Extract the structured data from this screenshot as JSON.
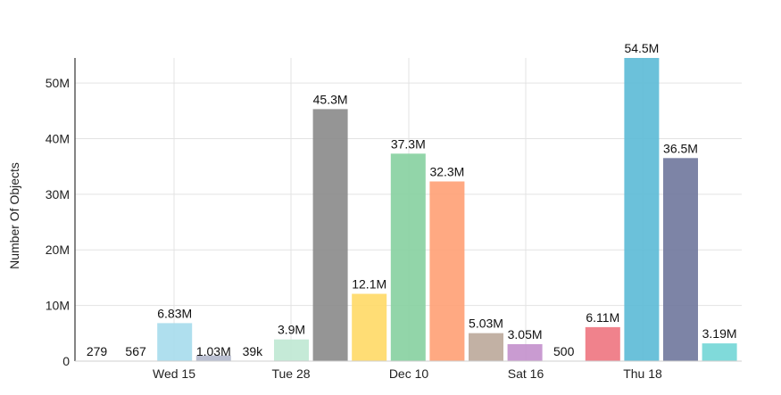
{
  "chart_data": {
    "type": "bar",
    "ylabel": "Number Of Objects",
    "ylim": [
      0,
      54500000
    ],
    "yticks": [
      0,
      10000000,
      20000000,
      30000000,
      40000000,
      50000000
    ],
    "ytick_labels": [
      "0",
      "10M",
      "20M",
      "30M",
      "40M",
      "50M"
    ],
    "xtick_labels": [
      "Wed 15",
      "Tue 28",
      "Dec 10",
      "Sat 16",
      "Thu 18"
    ],
    "grid": true,
    "bars": [
      {
        "value": 279,
        "label": "279",
        "color": "#87ceeb"
      },
      {
        "value": 567,
        "label": "567",
        "color": "#87ceeb"
      },
      {
        "value": 6830000,
        "label": "6.83M",
        "color": "#a6dcec"
      },
      {
        "value": 1030000,
        "label": "1.03M",
        "color": "#b3b8cc"
      },
      {
        "value": 39000,
        "label": "39k",
        "color": "#b9e6cf"
      },
      {
        "value": 3900000,
        "label": "3.9M",
        "color": "#bfe8d3"
      },
      {
        "value": 45300000,
        "label": "45.3M",
        "color": "#8a8a8a"
      },
      {
        "value": 12100000,
        "label": "12.1M",
        "color": "#ffd966"
      },
      {
        "value": 37300000,
        "label": "37.3M",
        "color": "#86d0a0"
      },
      {
        "value": 32300000,
        "label": "32.3M",
        "color": "#ffa074"
      },
      {
        "value": 5030000,
        "label": "5.03M",
        "color": "#bba99a"
      },
      {
        "value": 3050000,
        "label": "3.05M",
        "color": "#c390cc"
      },
      {
        "value": 500,
        "label": "500",
        "color": "#c390cc"
      },
      {
        "value": 6110000,
        "label": "6.11M",
        "color": "#ee7480"
      },
      {
        "value": 54500000,
        "label": "54.5M",
        "color": "#5bbad6"
      },
      {
        "value": 36500000,
        "label": "36.5M",
        "color": "#6f779c"
      },
      {
        "value": 3190000,
        "label": "3.19M",
        "color": "#72d6d6"
      }
    ]
  }
}
